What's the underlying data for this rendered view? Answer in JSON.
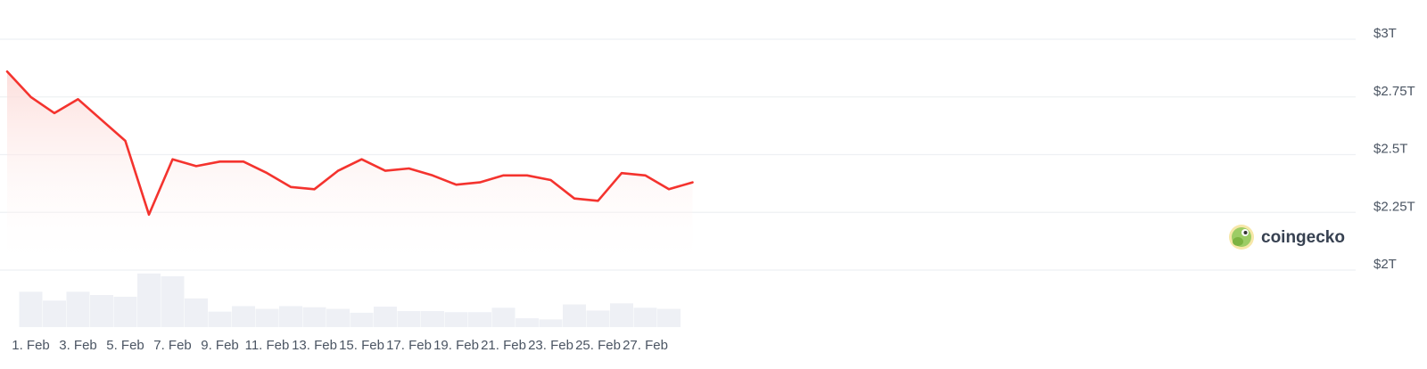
{
  "watermark": {
    "text": "coingecko"
  },
  "colors": {
    "line": "#f4332e",
    "area_top": "#fcd9d6",
    "volume_bar": "#eef0f5",
    "grid": "#eef0f3"
  },
  "chart_data": {
    "type": "area",
    "title": "",
    "xlabel": "",
    "ylabel": "",
    "ylim": [
      2.0,
      3.0
    ],
    "y_unit": "T USD",
    "y_ticks": [
      {
        "value": 3.0,
        "label": "$3T"
      },
      {
        "value": 2.75,
        "label": "$2.75T"
      },
      {
        "value": 2.5,
        "label": "$2.5T"
      },
      {
        "value": 2.25,
        "label": "$2.25T"
      },
      {
        "value": 2.0,
        "label": "$2T"
      }
    ],
    "x_ticks": [
      "1. Feb",
      "3. Feb",
      "5. Feb",
      "7. Feb",
      "9. Feb",
      "11. Feb",
      "13. Feb",
      "15. Feb",
      "17. Feb",
      "19. Feb",
      "21. Feb",
      "23. Feb",
      "25. Feb",
      "27. Feb"
    ],
    "grid": true,
    "legend": "none",
    "series": [
      {
        "kind": "area-line",
        "points": [
          {
            "x": "Jan 31",
            "y": 2.86
          },
          {
            "x": "1. Feb",
            "y": 2.75
          },
          {
            "x": "2. Feb",
            "y": 2.68
          },
          {
            "x": "3. Feb",
            "y": 2.74
          },
          {
            "x": "4. Feb",
            "y": 2.65
          },
          {
            "x": "5. Feb",
            "y": 2.56
          },
          {
            "x": "6. Feb",
            "y": 2.24
          },
          {
            "x": "7. Feb",
            "y": 2.48
          },
          {
            "x": "8. Feb",
            "y": 2.45
          },
          {
            "x": "9. Feb",
            "y": 2.47
          },
          {
            "x": "10. Feb",
            "y": 2.47
          },
          {
            "x": "11. Feb",
            "y": 2.42
          },
          {
            "x": "12. Feb",
            "y": 2.36
          },
          {
            "x": "13. Feb",
            "y": 2.35
          },
          {
            "x": "14. Feb",
            "y": 2.43
          },
          {
            "x": "15. Feb",
            "y": 2.48
          },
          {
            "x": "16. Feb",
            "y": 2.43
          },
          {
            "x": "17. Feb",
            "y": 2.44
          },
          {
            "x": "18. Feb",
            "y": 2.41
          },
          {
            "x": "19. Feb",
            "y": 2.37
          },
          {
            "x": "20. Feb",
            "y": 2.38
          },
          {
            "x": "21. Feb",
            "y": 2.41
          },
          {
            "x": "22. Feb",
            "y": 2.41
          },
          {
            "x": "23. Feb",
            "y": 2.39
          },
          {
            "x": "24. Feb",
            "y": 2.31
          },
          {
            "x": "25. Feb",
            "y": 2.3
          },
          {
            "x": "26. Feb",
            "y": 2.42
          },
          {
            "x": "27. Feb",
            "y": 2.41
          },
          {
            "x": "28. Feb",
            "y": 2.35
          },
          {
            "x": "Mar 1",
            "y": 2.38
          }
        ]
      },
      {
        "kind": "volume-bars",
        "relative_heights": [
          0.64,
          0.48,
          0.64,
          0.58,
          0.55,
          0.97,
          0.92,
          0.52,
          0.28,
          0.38,
          0.33,
          0.38,
          0.36,
          0.33,
          0.26,
          0.37,
          0.29,
          0.29,
          0.27,
          0.27,
          0.35,
          0.16,
          0.14,
          0.41,
          0.3,
          0.43,
          0.35,
          0.33
        ]
      }
    ]
  }
}
